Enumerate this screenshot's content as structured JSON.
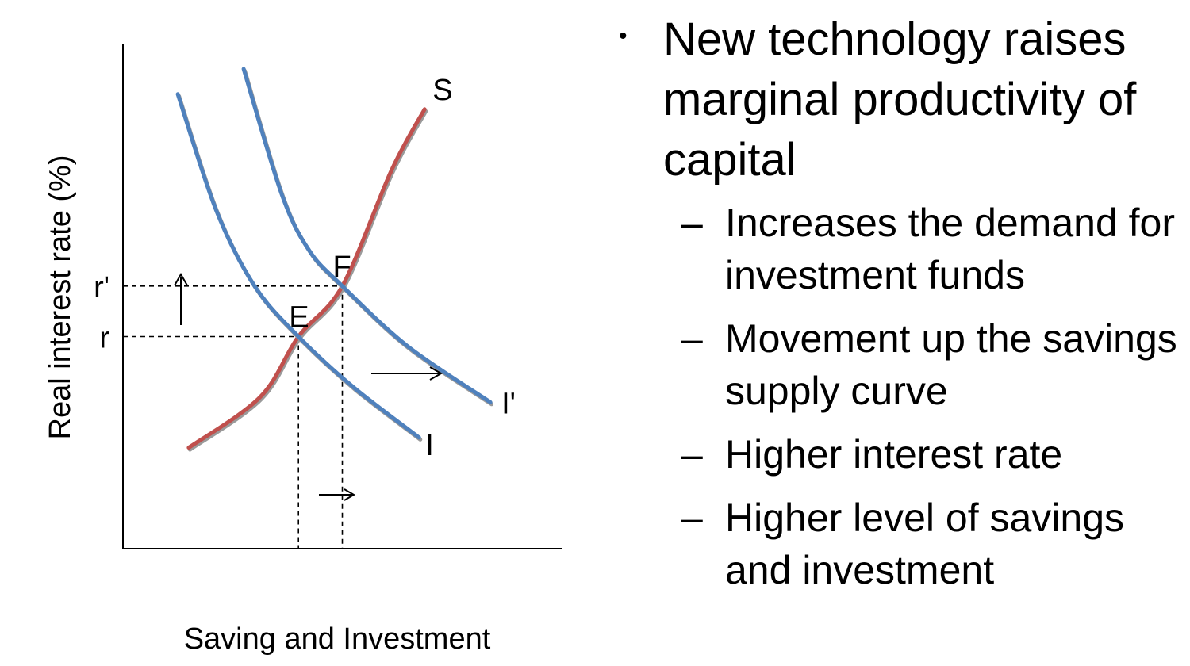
{
  "chart_data": {
    "type": "line",
    "xlabel": "Saving and Investment",
    "ylabel": "Real interest rate (%)",
    "y_ticks": [
      "r'",
      "r"
    ],
    "points": [
      {
        "label": "E",
        "x": 3.2,
        "y": 4.2
      },
      {
        "label": "F",
        "x": 4.0,
        "y": 5.2
      }
    ],
    "series": [
      {
        "name": "S",
        "color": "#c0504d",
        "x": [
          1.2,
          2.5,
          3.2,
          4.0,
          4.9,
          5.5
        ],
        "y": [
          2.0,
          3.0,
          4.2,
          5.2,
          7.5,
          8.7
        ]
      },
      {
        "name": "I",
        "color": "#4f81bd",
        "x": [
          1.0,
          1.7,
          2.4,
          3.2,
          4.2,
          5.4
        ],
        "y": [
          9.0,
          6.7,
          5.2,
          4.2,
          3.2,
          2.2
        ]
      },
      {
        "name": "I'",
        "color": "#4f81bd",
        "x": [
          2.2,
          2.9,
          3.4,
          4.0,
          5.2,
          6.7
        ],
        "y": [
          9.5,
          7.0,
          5.9,
          5.2,
          4.0,
          2.9
        ]
      }
    ]
  },
  "text": {
    "main_bullet": "New technology raises marginal productivity of capital",
    "sub_bullets": [
      "Increases the demand for investment funds",
      "Movement up the savings supply curve",
      "Higher interest rate",
      "Higher level of savings and investment"
    ]
  }
}
